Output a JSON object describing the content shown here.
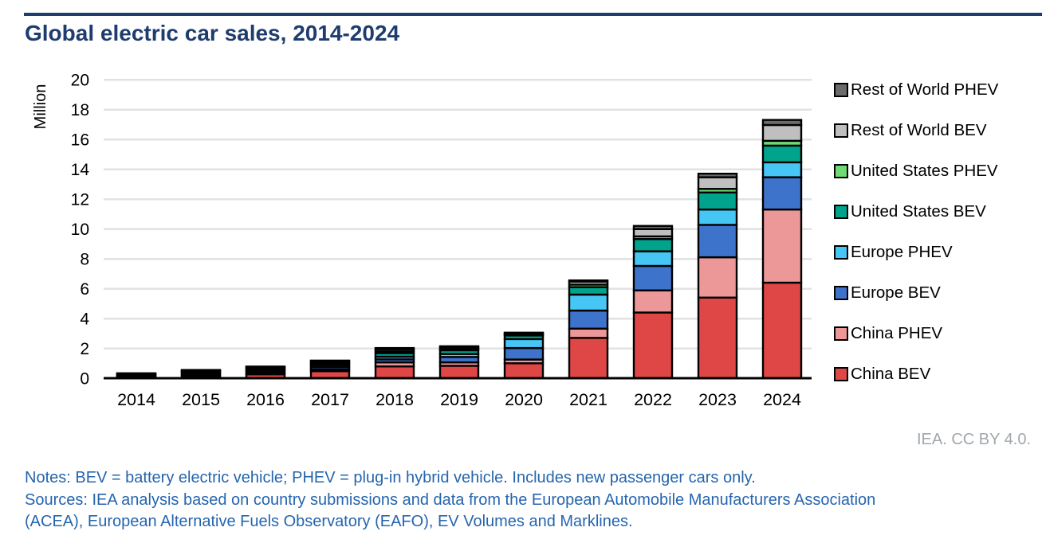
{
  "header": {
    "title": "Global electric car sales, 2014-2024",
    "rule_color": "#1e3c6e",
    "title_color": "#1e3c6e"
  },
  "chart_data": {
    "type": "bar",
    "stacked": true,
    "title": "Global electric car sales, 2014-2024",
    "unit": "million vehicles",
    "xlabel": "",
    "ylabel": "Million",
    "ylim": [
      0,
      20
    ],
    "ytick_step": 2,
    "grid": "horizontal-only",
    "gridline_color": "#e2e2e2",
    "axis_color": "#000000",
    "bar_outline_color": "#000000",
    "legend_position": "right",
    "legend_order_top_to_bottom": [
      "Rest of World PHEV",
      "Rest of World BEV",
      "United States PHEV",
      "United States BEV",
      "Europe PHEV",
      "Europe BEV",
      "China PHEV",
      "China BEV"
    ],
    "categories": [
      "2014",
      "2015",
      "2016",
      "2017",
      "2018",
      "2019",
      "2020",
      "2021",
      "2022",
      "2023",
      "2024"
    ],
    "series": [
      {
        "name": "China BEV",
        "color": "#df4646",
        "values": [
          0.05,
          0.15,
          0.26,
          0.47,
          0.79,
          0.83,
          1.0,
          2.7,
          4.4,
          5.4,
          6.4
        ]
      },
      {
        "name": "China PHEV",
        "color": "#ec9899",
        "values": [
          0.02,
          0.06,
          0.08,
          0.11,
          0.27,
          0.23,
          0.25,
          0.62,
          1.48,
          2.7,
          4.9
        ]
      },
      {
        "name": "Europe BEV",
        "color": "#3e73cb",
        "values": [
          0.06,
          0.09,
          0.12,
          0.15,
          0.2,
          0.36,
          0.77,
          1.21,
          1.64,
          2.17,
          2.16
        ]
      },
      {
        "name": "Europe PHEV",
        "color": "#45c6f4",
        "values": [
          0.04,
          0.08,
          0.1,
          0.13,
          0.18,
          0.2,
          0.6,
          1.07,
          0.98,
          1.03,
          1.0
        ]
      },
      {
        "name": "United States BEV",
        "color": "#00a48d",
        "values": [
          0.06,
          0.07,
          0.09,
          0.1,
          0.24,
          0.25,
          0.24,
          0.5,
          0.82,
          1.14,
          1.12
        ]
      },
      {
        "name": "United States PHEV",
        "color": "#70db74",
        "values": [
          0.05,
          0.04,
          0.07,
          0.09,
          0.12,
          0.08,
          0.06,
          0.17,
          0.18,
          0.24,
          0.32
        ]
      },
      {
        "name": "Rest of World BEV",
        "color": "#bfbfbf",
        "values": [
          0.03,
          0.04,
          0.04,
          0.08,
          0.14,
          0.13,
          0.09,
          0.2,
          0.49,
          0.78,
          1.06
        ]
      },
      {
        "name": "Rest of World PHEV",
        "color": "#6b6b6b",
        "values": [
          0.02,
          0.02,
          0.02,
          0.05,
          0.08,
          0.06,
          0.04,
          0.08,
          0.21,
          0.24,
          0.34
        ]
      }
    ],
    "totals": [
      0.33,
      0.55,
      0.78,
      1.18,
      2.02,
      2.14,
      3.05,
      6.55,
      10.2,
      13.7,
      17.3
    ]
  },
  "footer": {
    "attribution": "IEA. CC BY 4.0.",
    "attribution_color": "#a2a7ac"
  },
  "notes": {
    "text_color": "#2565ae",
    "lines": [
      "Notes: BEV = battery electric vehicle; PHEV = plug-in hybrid vehicle. Includes new passenger cars only.",
      "Sources: IEA analysis based on country submissions and data from the European Automobile Manufacturers Association",
      "(ACEA), European Alternative Fuels Observatory (EAFO), EV Volumes and Marklines."
    ]
  }
}
